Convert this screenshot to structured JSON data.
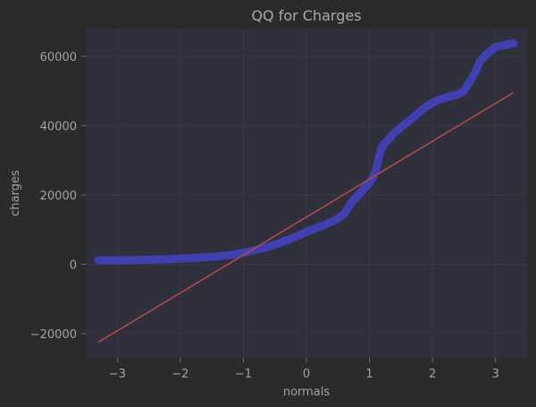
{
  "chart_data": {
    "type": "scatter",
    "title": "QQ for Charges",
    "xlabel": "normals",
    "ylabel": "charges",
    "xlim": [
      -3.5,
      3.5
    ],
    "ylim": [
      -27000,
      68000
    ],
    "xticks": [
      -3,
      -2,
      -1,
      0,
      1,
      2,
      3
    ],
    "xtick_labels": [
      "−3",
      "−2",
      "−1",
      "0",
      "1",
      "2",
      "3"
    ],
    "yticks": [
      -20000,
      0,
      20000,
      40000,
      60000
    ],
    "ytick_labels": [
      "−20000",
      "0",
      "20000",
      "40000",
      "60000"
    ],
    "grid": true,
    "series": [
      {
        "kind": "points",
        "color": "#4040b0",
        "points": [
          [
            -3.3,
            1100
          ],
          [
            -3.05,
            1150
          ],
          [
            -2.9,
            1200
          ],
          [
            -2.8,
            1210
          ],
          [
            -2.7,
            1220
          ],
          [
            -2.6,
            1250
          ],
          [
            -2.5,
            1300
          ],
          [
            -2.4,
            1350
          ],
          [
            -2.3,
            1400
          ],
          [
            -2.2,
            1450
          ],
          [
            -2.1,
            1500
          ],
          [
            -2.0,
            1600
          ],
          [
            -1.9,
            1700
          ],
          [
            -1.8,
            1800
          ],
          [
            -1.7,
            1950
          ],
          [
            -1.6,
            2050
          ],
          [
            -1.5,
            2150
          ],
          [
            -1.4,
            2300
          ],
          [
            -1.3,
            2500
          ],
          [
            -1.2,
            2700
          ],
          [
            -1.1,
            3000
          ],
          [
            -1.0,
            3300
          ],
          [
            -0.9,
            3700
          ],
          [
            -0.8,
            4100
          ],
          [
            -0.7,
            4600
          ],
          [
            -0.6,
            5100
          ],
          [
            -0.5,
            5700
          ],
          [
            -0.4,
            6300
          ],
          [
            -0.3,
            7000
          ],
          [
            -0.2,
            7700
          ],
          [
            -0.1,
            8500
          ],
          [
            0.0,
            9300
          ],
          [
            0.1,
            10000
          ],
          [
            0.2,
            10800
          ],
          [
            0.3,
            11500
          ],
          [
            0.4,
            12300
          ],
          [
            0.5,
            13200
          ],
          [
            0.6,
            14500
          ],
          [
            0.7,
            17500
          ],
          [
            0.8,
            19500
          ],
          [
            0.9,
            21500
          ],
          [
            1.0,
            23500
          ],
          [
            1.05,
            25000
          ],
          [
            1.1,
            27000
          ],
          [
            1.15,
            31000
          ],
          [
            1.2,
            34000
          ],
          [
            1.3,
            36000
          ],
          [
            1.4,
            38000
          ],
          [
            1.5,
            39500
          ],
          [
            1.6,
            41000
          ],
          [
            1.7,
            42500
          ],
          [
            1.8,
            44000
          ],
          [
            1.9,
            45500
          ],
          [
            2.0,
            46500
          ],
          [
            2.1,
            47500
          ],
          [
            2.2,
            48000
          ],
          [
            2.3,
            48500
          ],
          [
            2.4,
            49000
          ],
          [
            2.5,
            50000
          ],
          [
            2.55,
            51500
          ],
          [
            2.6,
            53000
          ],
          [
            2.68,
            55500
          ],
          [
            2.75,
            58500
          ],
          [
            2.85,
            60500
          ],
          [
            3.0,
            62700
          ],
          [
            3.28,
            63800
          ]
        ]
      },
      {
        "kind": "line",
        "color": "#b04a4a",
        "points": [
          [
            -3.3,
            -22500
          ],
          [
            3.28,
            49500
          ]
        ]
      }
    ]
  }
}
